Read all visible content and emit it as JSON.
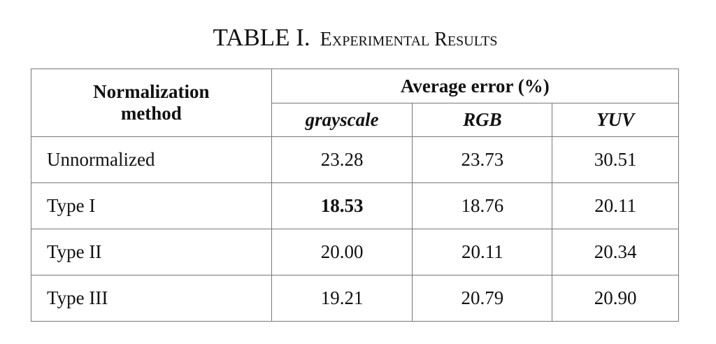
{
  "title": {
    "number": "TABLE I.",
    "caption": "Experimental Results"
  },
  "header": {
    "method": [
      "Normalization",
      "method"
    ],
    "group": "Average error (%)",
    "columns": [
      "grayscale",
      "RGB",
      "YUV"
    ]
  },
  "rows": [
    {
      "method": "Unnormalized",
      "values": [
        "23.28",
        "23.73",
        "30.51"
      ]
    },
    {
      "method": "Type I",
      "values": [
        "18.53",
        "18.76",
        "20.11"
      ]
    },
    {
      "method": "Type II",
      "values": [
        "20.00",
        "20.11",
        "20.34"
      ]
    },
    {
      "method": "Type III",
      "values": [
        "19.21",
        "20.79",
        "20.90"
      ]
    }
  ],
  "highlight": {
    "row": 1,
    "column": 0,
    "style": "bold"
  }
}
